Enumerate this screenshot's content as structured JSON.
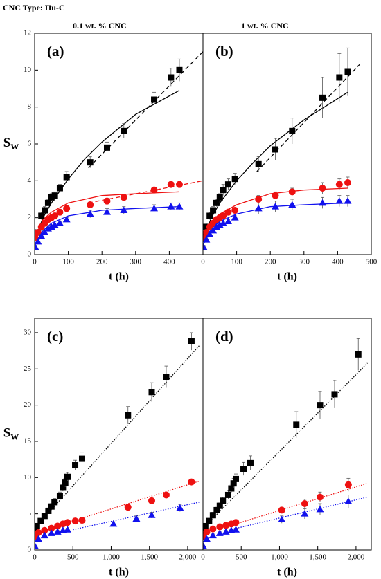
{
  "header": "CNC Type: Hu-C",
  "chart_data": [
    {
      "type": "scatter",
      "subtitle": "0.1 wt. % CNC",
      "panel": "(a)",
      "xlabel": "t (h)",
      "ylabel": "S",
      "ylabel_sub": "W",
      "xlim": [
        0,
        500
      ],
      "ylim": [
        0,
        12
      ],
      "xticks": [
        0,
        100,
        200,
        300,
        400
      ],
      "yticks": [
        0,
        2,
        4,
        6,
        8,
        10,
        12
      ],
      "series": [
        {
          "color": "#000000",
          "marker": "square",
          "x": [
            2,
            10,
            20,
            30,
            40,
            50,
            60,
            75,
            95,
            165,
            215,
            265,
            355,
            405,
            430
          ],
          "values": [
            1.2,
            1.2,
            2.1,
            2.4,
            2.8,
            3.1,
            3.2,
            3.6,
            4.2,
            5.0,
            5.8,
            6.7,
            8.4,
            9.6,
            10.0
          ],
          "errors": [
            0.1,
            0.1,
            0.2,
            0.2,
            0.2,
            0.2,
            0.2,
            0.2,
            0.3,
            0.3,
            0.3,
            0.4,
            0.4,
            0.5,
            0.6
          ]
        },
        {
          "color": "#ee1111",
          "marker": "circle",
          "x": [
            2,
            10,
            20,
            30,
            40,
            50,
            60,
            75,
            95,
            165,
            215,
            265,
            355,
            405,
            430
          ],
          "values": [
            0.9,
            1.2,
            1.5,
            1.7,
            1.9,
            2.0,
            2.1,
            2.3,
            2.5,
            2.7,
            2.9,
            3.1,
            3.5,
            3.8,
            3.8
          ],
          "errors": [
            0.1,
            0.1,
            0.1,
            0.1,
            0.1,
            0.1,
            0.1,
            0.1,
            0.1,
            0.1,
            0.1,
            0.1,
            0.1,
            0.1,
            0.1
          ]
        },
        {
          "color": "#1111ee",
          "marker": "triangle",
          "x": [
            2,
            10,
            20,
            30,
            40,
            50,
            60,
            75,
            95,
            165,
            215,
            265,
            355,
            405,
            430
          ],
          "values": [
            0.4,
            0.7,
            1.0,
            1.2,
            1.4,
            1.5,
            1.6,
            1.7,
            1.9,
            2.2,
            2.3,
            2.4,
            2.5,
            2.6,
            2.6
          ],
          "errors": [
            0.1,
            0.1,
            0.1,
            0.1,
            0.1,
            0.1,
            0.1,
            0.1,
            0.1,
            0.2,
            0.2,
            0.2,
            0.2,
            0.2,
            0.2
          ]
        }
      ],
      "fits": [
        {
          "color": "#000000",
          "dash": "solid",
          "x": [
            0,
            25,
            50,
            100,
            150,
            200,
            300,
            430
          ],
          "y": [
            0.8,
            2.0,
            2.8,
            4.1,
            5.2,
            6.1,
            7.6,
            8.9
          ]
        },
        {
          "color": "#000000",
          "dash": "dashed",
          "x": [
            160,
            500
          ],
          "y": [
            4.7,
            11.0
          ]
        },
        {
          "color": "#ee1111",
          "dash": "solid",
          "x": [
            0,
            25,
            50,
            100,
            200,
            300,
            430
          ],
          "y": [
            0.8,
            1.9,
            2.3,
            2.8,
            3.2,
            3.3,
            3.4
          ]
        },
        {
          "color": "#ee1111",
          "dash": "dashed",
          "x": [
            160,
            500
          ],
          "y": [
            2.8,
            4.0
          ]
        },
        {
          "color": "#1111ee",
          "dash": "solid",
          "x": [
            0,
            25,
            50,
            100,
            200,
            300,
            430
          ],
          "y": [
            0.5,
            1.3,
            1.7,
            2.1,
            2.4,
            2.5,
            2.6
          ]
        }
      ]
    },
    {
      "type": "scatter",
      "subtitle": "1 wt. % CNC",
      "panel": "(b)",
      "xlabel": "t (h)",
      "xlim": [
        0,
        500
      ],
      "ylim": [
        0,
        12
      ],
      "xticks": [
        0,
        100,
        200,
        300,
        400,
        500
      ],
      "series": [
        {
          "color": "#000000",
          "marker": "square",
          "x": [
            2,
            10,
            20,
            30,
            40,
            50,
            60,
            75,
            95,
            165,
            215,
            265,
            355,
            405,
            430
          ],
          "values": [
            1.0,
            1.5,
            2.1,
            2.4,
            2.8,
            3.1,
            3.5,
            3.8,
            4.1,
            4.9,
            5.7,
            6.7,
            8.5,
            9.6,
            9.9
          ],
          "errors": [
            0.1,
            0.2,
            0.2,
            0.2,
            0.2,
            0.2,
            0.3,
            0.3,
            0.3,
            0.4,
            0.6,
            0.7,
            1.1,
            1.3,
            1.3
          ]
        },
        {
          "color": "#ee1111",
          "marker": "circle",
          "x": [
            2,
            10,
            20,
            30,
            40,
            50,
            60,
            75,
            95,
            165,
            215,
            265,
            355,
            405,
            430
          ],
          "values": [
            0.9,
            1.2,
            1.5,
            1.7,
            1.9,
            2.0,
            2.1,
            2.3,
            2.4,
            3.0,
            3.2,
            3.4,
            3.6,
            3.8,
            3.9
          ],
          "errors": [
            0.1,
            0.1,
            0.1,
            0.1,
            0.1,
            0.1,
            0.1,
            0.1,
            0.1,
            0.2,
            0.2,
            0.2,
            0.3,
            0.3,
            0.3
          ]
        },
        {
          "color": "#1111ee",
          "marker": "triangle",
          "x": [
            2,
            10,
            20,
            30,
            40,
            50,
            60,
            75,
            95,
            165,
            215,
            265,
            355,
            405,
            430
          ],
          "values": [
            0.4,
            0.8,
            1.1,
            1.3,
            1.5,
            1.6,
            1.7,
            1.8,
            2.0,
            2.5,
            2.6,
            2.7,
            2.8,
            2.9,
            2.9
          ],
          "errors": [
            0.1,
            0.1,
            0.1,
            0.1,
            0.1,
            0.1,
            0.1,
            0.1,
            0.1,
            0.3,
            0.3,
            0.3,
            0.3,
            0.3,
            0.3
          ]
        }
      ],
      "fits": [
        {
          "color": "#000000",
          "dash": "solid",
          "x": [
            0,
            25,
            50,
            100,
            150,
            200,
            300,
            430
          ],
          "y": [
            0.8,
            2.0,
            2.8,
            4.0,
            5.0,
            5.9,
            7.3,
            8.8
          ]
        },
        {
          "color": "#000000",
          "dash": "dashed",
          "x": [
            160,
            465
          ],
          "y": [
            4.5,
            10.3
          ]
        },
        {
          "color": "#ee1111",
          "dash": "solid",
          "x": [
            0,
            25,
            50,
            100,
            200,
            300,
            430
          ],
          "y": [
            0.8,
            1.8,
            2.2,
            2.7,
            3.3,
            3.5,
            3.6
          ]
        },
        {
          "color": "#1111ee",
          "dash": "solid",
          "x": [
            0,
            25,
            50,
            100,
            200,
            300,
            430
          ],
          "y": [
            0.5,
            1.4,
            1.8,
            2.2,
            2.6,
            2.7,
            2.8
          ]
        }
      ]
    },
    {
      "type": "scatter",
      "panel": "(c)",
      "xlabel": "t (h)",
      "ylabel": "S",
      "ylabel_sub": "W",
      "xlim": [
        0,
        2200
      ],
      "ylim": [
        0,
        32
      ],
      "xticks": [
        0,
        500,
        {
          "value": 1000,
          "label": "1,000"
        },
        {
          "value": 1500,
          "label": "1,500"
        },
        {
          "value": 2000,
          "label": "2,000"
        }
      ],
      "yticks": [
        0,
        5,
        10,
        15,
        20,
        25,
        30
      ],
      "series": [
        {
          "color": "#000000",
          "marker": "square",
          "x": [
            5,
            30,
            80,
            130,
            180,
            220,
            260,
            330,
            370,
            400,
            430,
            530,
            620,
            1220,
            1530,
            1720,
            2050
          ],
          "values": [
            2.5,
            3.3,
            4.0,
            4.7,
            5.4,
            6.0,
            6.6,
            7.5,
            8.6,
            9.3,
            10.1,
            11.7,
            12.6,
            18.6,
            21.8,
            23.9,
            28.8
          ],
          "errors": [
            0.3,
            0.3,
            0.3,
            0.4,
            0.4,
            0.4,
            0.5,
            0.5,
            0.5,
            0.6,
            0.6,
            0.7,
            0.9,
            1.2,
            1.3,
            1.5,
            1.2
          ]
        },
        {
          "color": "#ee1111",
          "marker": "circle",
          "x": [
            5,
            50,
            130,
            220,
            300,
            370,
            430,
            530,
            620,
            1220,
            1530,
            1720,
            2050
          ],
          "values": [
            1.8,
            2.4,
            2.7,
            3.0,
            3.3,
            3.6,
            3.8,
            4.0,
            4.1,
            5.9,
            6.8,
            7.6,
            9.4
          ],
          "errors": [
            0.2,
            0.2,
            0.2,
            0.2,
            0.2,
            0.2,
            0.2,
            0.2,
            0.2,
            0.3,
            0.3,
            0.3,
            0.4
          ]
        },
        {
          "color": "#1111ee",
          "marker": "triangle",
          "x": [
            5,
            50,
            130,
            220,
            300,
            370,
            430,
            1030,
            1330,
            1530,
            1900
          ],
          "values": [
            0.5,
            1.5,
            2.0,
            2.3,
            2.5,
            2.7,
            2.8,
            3.6,
            4.3,
            4.8,
            5.8
          ],
          "errors": [
            0.1,
            0.1,
            0.2,
            0.2,
            0.2,
            0.2,
            0.2,
            0.3,
            0.4,
            0.4,
            0.5
          ]
        }
      ],
      "fits": [
        {
          "color": "#000000",
          "dash": "dotted",
          "x": [
            0,
            2150
          ],
          "y": [
            3.0,
            28.2
          ]
        },
        {
          "color": "#ee1111",
          "dash": "dotted",
          "x": [
            500,
            2150
          ],
          "y": [
            4.0,
            9.5
          ]
        },
        {
          "color": "#1111ee",
          "dash": "dotted",
          "x": [
            500,
            2150
          ],
          "y": [
            2.8,
            6.6
          ]
        }
      ]
    },
    {
      "type": "scatter",
      "panel": "(d)",
      "xlabel": "t (h)",
      "xlim": [
        0,
        2200
      ],
      "ylim": [
        0,
        32
      ],
      "xticks": [
        0,
        500,
        {
          "value": 1000,
          "label": "1,000"
        },
        {
          "value": 1500,
          "label": "1,500"
        },
        {
          "value": 2000,
          "label": "2,000"
        }
      ],
      "series": [
        {
          "color": "#000000",
          "marker": "square",
          "x": [
            5,
            30,
            80,
            130,
            180,
            220,
            260,
            330,
            370,
            400,
            430,
            530,
            620,
            1220,
            1530,
            1720,
            2030
          ],
          "values": [
            2.5,
            3.3,
            4.0,
            4.8,
            5.5,
            6.1,
            6.8,
            7.6,
            8.5,
            9.2,
            9.8,
            11.2,
            12.0,
            17.3,
            20.0,
            21.5,
            27.0
          ],
          "errors": [
            0.3,
            0.3,
            0.3,
            0.4,
            0.4,
            0.4,
            0.5,
            0.6,
            0.6,
            0.7,
            0.7,
            0.9,
            1.0,
            1.8,
            1.9,
            1.9,
            2.2
          ]
        },
        {
          "color": "#ee1111",
          "marker": "circle",
          "x": [
            5,
            50,
            130,
            220,
            300,
            370,
            430,
            1030,
            1330,
            1530,
            1900
          ],
          "values": [
            1.8,
            2.5,
            2.9,
            3.2,
            3.4,
            3.6,
            3.8,
            5.5,
            6.4,
            7.3,
            9.0
          ],
          "errors": [
            0.2,
            0.2,
            0.2,
            0.2,
            0.2,
            0.2,
            0.3,
            0.4,
            0.6,
            0.7,
            0.9
          ]
        },
        {
          "color": "#1111ee",
          "marker": "triangle",
          "x": [
            5,
            50,
            130,
            220,
            300,
            370,
            430,
            1030,
            1330,
            1530,
            1900
          ],
          "values": [
            0.5,
            1.5,
            2.0,
            2.3,
            2.5,
            2.7,
            2.8,
            4.2,
            5.0,
            5.6,
            6.7
          ],
          "errors": [
            0.1,
            0.1,
            0.2,
            0.2,
            0.2,
            0.2,
            0.2,
            0.5,
            0.7,
            0.8,
            0.9
          ]
        }
      ],
      "fits": [
        {
          "color": "#000000",
          "dash": "dotted",
          "x": [
            0,
            2150
          ],
          "y": [
            3.0,
            25.8
          ]
        },
        {
          "color": "#ee1111",
          "dash": "dotted",
          "x": [
            400,
            2150
          ],
          "y": [
            3.5,
            9.2
          ]
        },
        {
          "color": "#1111ee",
          "dash": "dotted",
          "x": [
            400,
            2150
          ],
          "y": [
            2.9,
            7.3
          ]
        }
      ]
    }
  ]
}
